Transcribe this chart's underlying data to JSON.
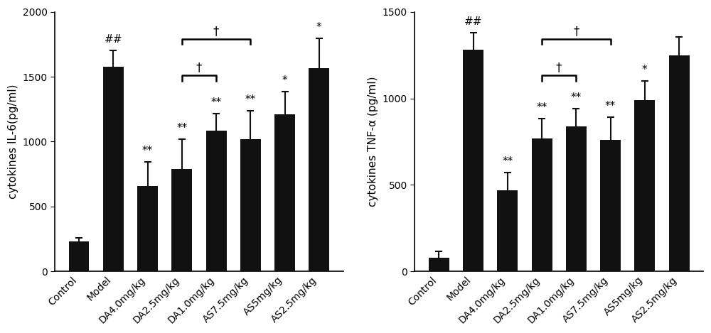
{
  "left": {
    "ylabel": "cytokines IL-6(pg/ml)",
    "categories": [
      "Control",
      "Model",
      "DA4.0mg/kg",
      "DA2.5mg/kg",
      "DA1.0mg/kg",
      "AS7.5mg/kg",
      "AS5mg/kg",
      "AS2.5mg/kg"
    ],
    "values": [
      230,
      1575,
      660,
      790,
      1085,
      1020,
      1210,
      1565
    ],
    "errors": [
      30,
      130,
      185,
      230,
      130,
      215,
      175,
      230
    ],
    "ylim": [
      0,
      2000
    ],
    "yticks": [
      0,
      500,
      1000,
      1500,
      2000
    ],
    "significance": [
      "",
      "##",
      "**",
      "**",
      "**",
      "**",
      "*",
      "*"
    ],
    "inner_bracket": [
      3,
      4
    ],
    "outer_bracket": [
      3,
      5
    ]
  },
  "right": {
    "ylabel": "cytokines TNF-α (pg/ml)",
    "categories": [
      "Control",
      "Model",
      "DA4.0mg/kg",
      "DA2.5mg/kg",
      "DA1.0mg/kg",
      "AS7.5mg/kg",
      "AS5mg/kg",
      "AS2.5mg/kg"
    ],
    "values": [
      80,
      1280,
      470,
      770,
      840,
      760,
      990,
      1250
    ],
    "errors": [
      35,
      100,
      100,
      115,
      100,
      130,
      110,
      105
    ],
    "ylim": [
      0,
      1500
    ],
    "yticks": [
      0,
      500,
      1000,
      1500
    ],
    "significance": [
      "",
      "##",
      "**",
      "**",
      "**",
      "**",
      "*",
      ""
    ],
    "inner_bracket": [
      3,
      4
    ],
    "outer_bracket": [
      3,
      5
    ]
  },
  "bar_color": "#111111",
  "bar_width": 0.6,
  "sig_fontsize": 11,
  "label_fontsize": 11,
  "tick_fontsize": 10,
  "bracket_linewidth": 1.8,
  "dagger": "†"
}
